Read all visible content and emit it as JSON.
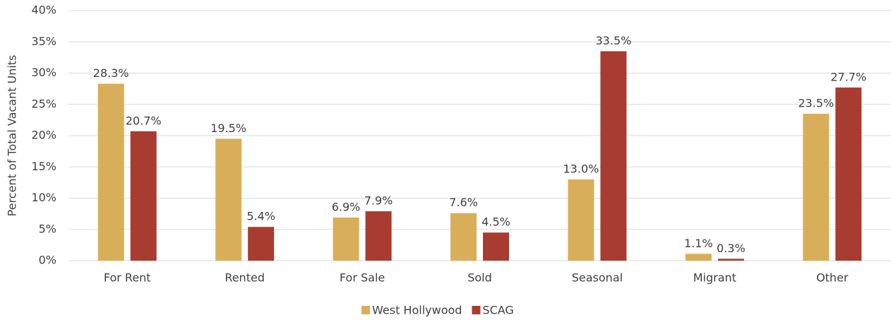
{
  "chart_data": {
    "type": "bar",
    "y_label": "Percent of Total Vacant Units",
    "categories": [
      "For Rent",
      "Rented",
      "For Sale",
      "Sold",
      "Seasonal",
      "Migrant",
      "Other"
    ],
    "series": [
      {
        "name": "West Hollywood",
        "color": "#d9ae5a",
        "values": [
          28.3,
          19.5,
          6.9,
          7.6,
          13.0,
          1.1,
          23.5
        ],
        "value_labels": [
          "28.3%",
          "19.5%",
          "6.9%",
          "7.6%",
          "13.0%",
          "1.1%",
          "23.5%"
        ]
      },
      {
        "name": "SCAG",
        "color": "#a93c30",
        "values": [
          20.7,
          5.4,
          7.9,
          4.5,
          33.5,
          0.3,
          27.7
        ],
        "value_labels": [
          "20.7%",
          "5.4%",
          "7.9%",
          "4.5%",
          "33.5%",
          "0.3%",
          "27.7%"
        ]
      }
    ],
    "ylim": [
      0,
      40
    ],
    "yticks": [
      {
        "value": 0,
        "label": "0%"
      },
      {
        "value": 5,
        "label": "5%"
      },
      {
        "value": 10,
        "label": "10%"
      },
      {
        "value": 15,
        "label": "15%"
      },
      {
        "value": 20,
        "label": "20%"
      },
      {
        "value": 25,
        "label": "25%"
      },
      {
        "value": 30,
        "label": "30%"
      },
      {
        "value": 35,
        "label": "35%"
      },
      {
        "value": 40,
        "label": "40%"
      }
    ],
    "grid": true,
    "legend": "bottom"
  }
}
